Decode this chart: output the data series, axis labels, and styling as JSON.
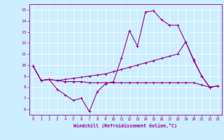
{
  "xlabel": "Windchill (Refroidissement éolien,°C)",
  "bg_color": "#cceeff",
  "line_color": "#990099",
  "xlim": [
    -0.5,
    23.5
  ],
  "ylim": [
    5.5,
    15.5
  ],
  "xticks": [
    0,
    1,
    2,
    3,
    4,
    5,
    6,
    7,
    8,
    9,
    10,
    11,
    12,
    13,
    14,
    15,
    16,
    17,
    18,
    19,
    20,
    21,
    22,
    23
  ],
  "yticks": [
    6,
    7,
    8,
    9,
    10,
    11,
    12,
    13,
    14,
    15
  ],
  "line1_x": [
    0,
    1,
    2,
    3,
    4,
    5,
    6,
    7,
    8,
    9,
    10,
    11,
    12,
    13,
    14,
    15,
    16,
    17,
    18,
    19,
    20,
    21,
    22,
    23
  ],
  "line1_y": [
    9.9,
    8.6,
    8.7,
    7.8,
    7.3,
    6.8,
    7.0,
    5.8,
    7.6,
    8.3,
    8.5,
    10.6,
    13.1,
    11.7,
    14.8,
    14.9,
    14.1,
    13.6,
    13.6,
    12.1,
    10.4,
    9.0,
    8.0,
    8.1
  ],
  "line2_x": [
    0,
    1,
    2,
    3,
    4,
    5,
    6,
    7,
    8,
    9,
    10,
    11,
    12,
    13,
    14,
    15,
    16,
    17,
    18,
    19,
    20,
    21,
    22,
    23
  ],
  "line2_y": [
    9.9,
    8.6,
    8.7,
    8.6,
    8.7,
    8.8,
    8.9,
    9.0,
    9.1,
    9.2,
    9.4,
    9.6,
    9.8,
    10.0,
    10.2,
    10.4,
    10.6,
    10.8,
    11.0,
    12.1,
    10.5,
    9.0,
    8.0,
    8.1
  ],
  "line3_x": [
    0,
    1,
    2,
    3,
    4,
    5,
    6,
    7,
    8,
    9,
    10,
    11,
    12,
    13,
    14,
    15,
    16,
    17,
    18,
    19,
    20,
    21,
    22,
    23
  ],
  "line3_y": [
    9.9,
    8.6,
    8.7,
    8.6,
    8.5,
    8.5,
    8.5,
    8.4,
    8.4,
    8.4,
    8.4,
    8.4,
    8.4,
    8.4,
    8.4,
    8.4,
    8.4,
    8.4,
    8.4,
    8.4,
    8.4,
    8.2,
    8.0,
    8.1
  ]
}
